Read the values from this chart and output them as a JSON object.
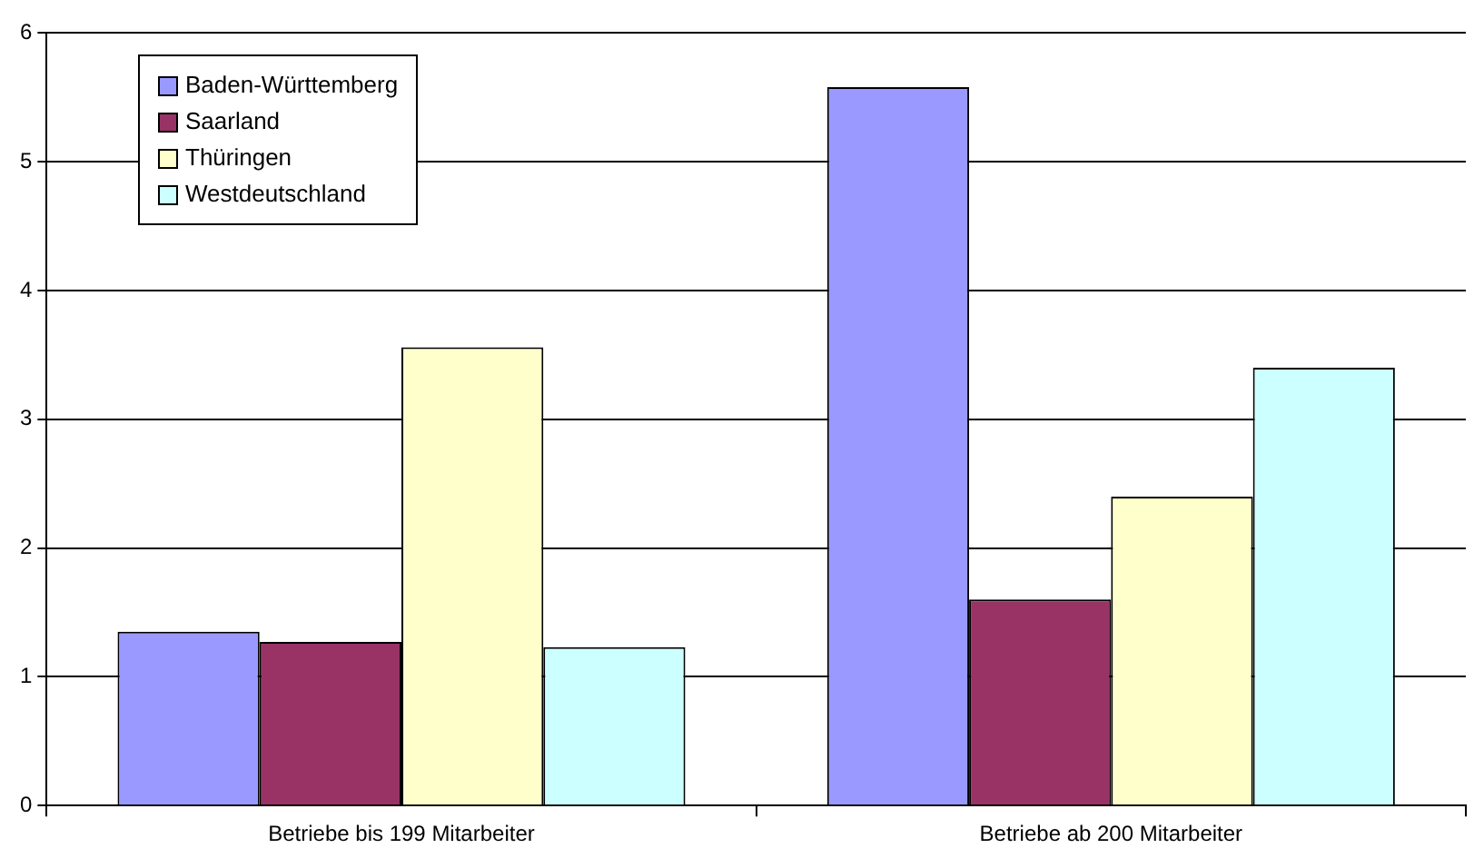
{
  "chart_data": {
    "type": "bar",
    "categories": [
      "Betriebe bis 199 Mitarbeiter",
      "Betriebe ab 200 Mitarbeiter"
    ],
    "series": [
      {
        "name": "Baden-Württemberg",
        "color": "#9999ff",
        "values": [
          1.35,
          5.58
        ]
      },
      {
        "name": "Saarland",
        "color": "#993366",
        "values": [
          1.27,
          1.6
        ]
      },
      {
        "name": "Thüringen",
        "color": "#ffffcc",
        "values": [
          3.56,
          2.4
        ]
      },
      {
        "name": "Westdeutschland",
        "color": "#ccffff",
        "values": [
          1.23,
          3.4
        ]
      }
    ],
    "ylim": [
      0,
      6
    ],
    "yticks": [
      0,
      1,
      2,
      3,
      4,
      5,
      6
    ],
    "grid": "y",
    "legend": "top left"
  }
}
